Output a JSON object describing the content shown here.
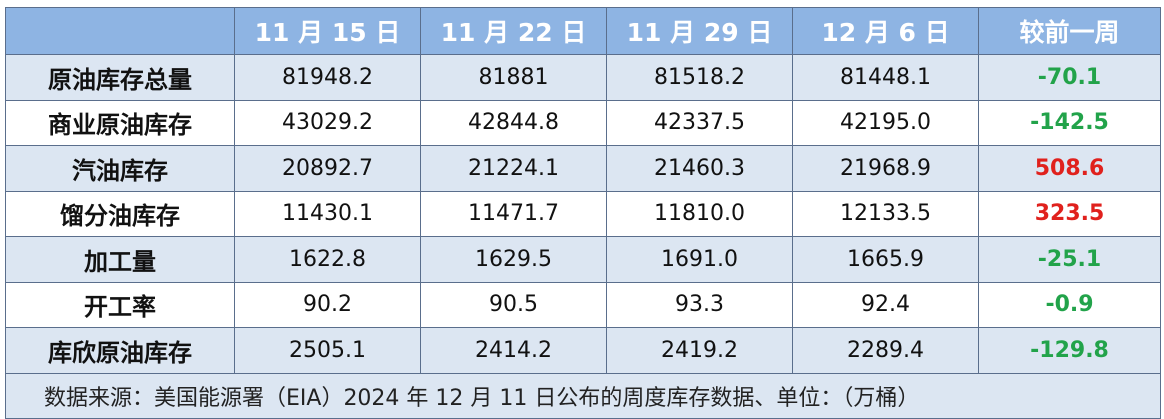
{
  "columns": [
    "",
    "11 月 15 日",
    "11 月 22 日",
    "11 月 29 日",
    "12 月 6 日",
    "较前一周"
  ],
  "rows": [
    {
      "label": "原油库存总量",
      "values": [
        "81948.2",
        "81881",
        "81518.2",
        "81448.1"
      ],
      "change": "-70.1",
      "change_color": "#22a34a"
    },
    {
      "label": "商业原油库存",
      "values": [
        "43029.2",
        "42844.8",
        "42337.5",
        "42195.0"
      ],
      "change": "-142.5",
      "change_color": "#22a34a"
    },
    {
      "label": "汽油库存",
      "values": [
        "20892.7",
        "21224.1",
        "21460.3",
        "21968.9"
      ],
      "change": "508.6",
      "change_color": "#e0211d"
    },
    {
      "label": "馏分油库存",
      "values": [
        "11430.1",
        "11471.7",
        "11810.0",
        "12133.5"
      ],
      "change": "323.5",
      "change_color": "#e0211d"
    },
    {
      "label": "加工量",
      "values": [
        "1622.8",
        "1629.5",
        "1691.0",
        "1665.9"
      ],
      "change": "-25.1",
      "change_color": "#22a34a"
    },
    {
      "label": "开工率",
      "values": [
        "90.2",
        "90.5",
        "93.3",
        "92.4"
      ],
      "change": "-0.9",
      "change_color": "#22a34a"
    },
    {
      "label": "库欣原油库存",
      "values": [
        "2505.1",
        "2414.2",
        "2419.2",
        "2289.4"
      ],
      "change": "-129.8",
      "change_color": "#22a34a"
    }
  ],
  "footnote": "数据来源：美国能源署（EIA）2024 年 12 月 11 日公布的周度库存数据、单位：（万桶）",
  "colors": {
    "header_bg": "#8eb4e3",
    "stripe": "#dce6f2",
    "border": "#5a6e8c"
  }
}
